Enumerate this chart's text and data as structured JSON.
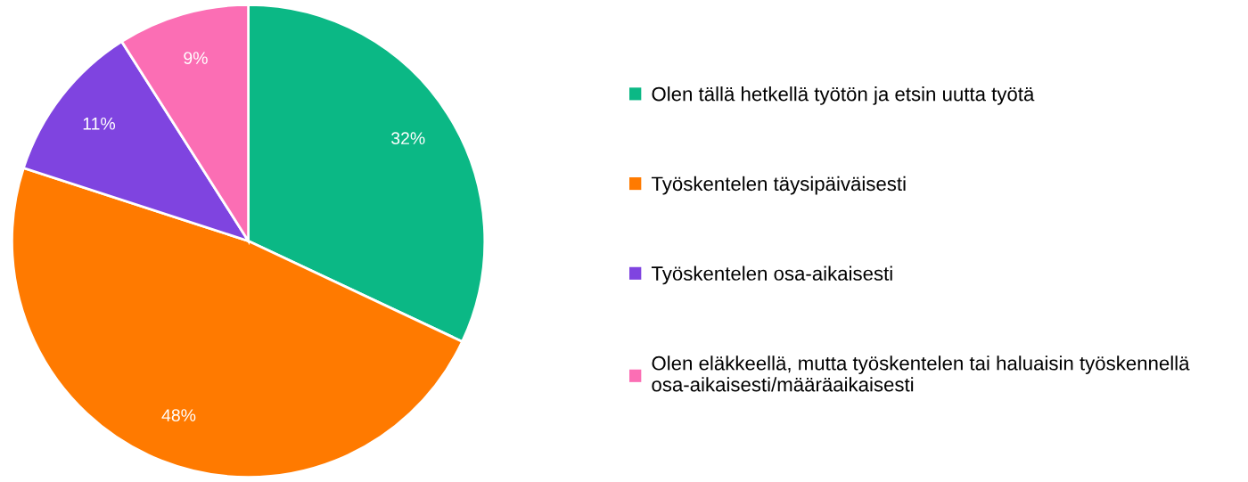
{
  "chart_data": {
    "type": "pie",
    "categories": [
      "Olen tällä hetkellä työtön ja etsin uutta työtä",
      "Työskentelen täysipäiväisesti",
      "Työskentelen osa-aikaisesti",
      "Olen eläkkeellä, mutta työskentelen tai haluaisin työskennellä osa-aikaisesti/määräaikaisesti"
    ],
    "values": [
      32,
      48,
      11,
      9
    ],
    "colors": [
      "#0bb885",
      "#ff7a00",
      "#7f44e0",
      "#fb6eb4"
    ],
    "value_labels": [
      "32%",
      "48%",
      "11%",
      "9%"
    ],
    "legend": "right"
  }
}
